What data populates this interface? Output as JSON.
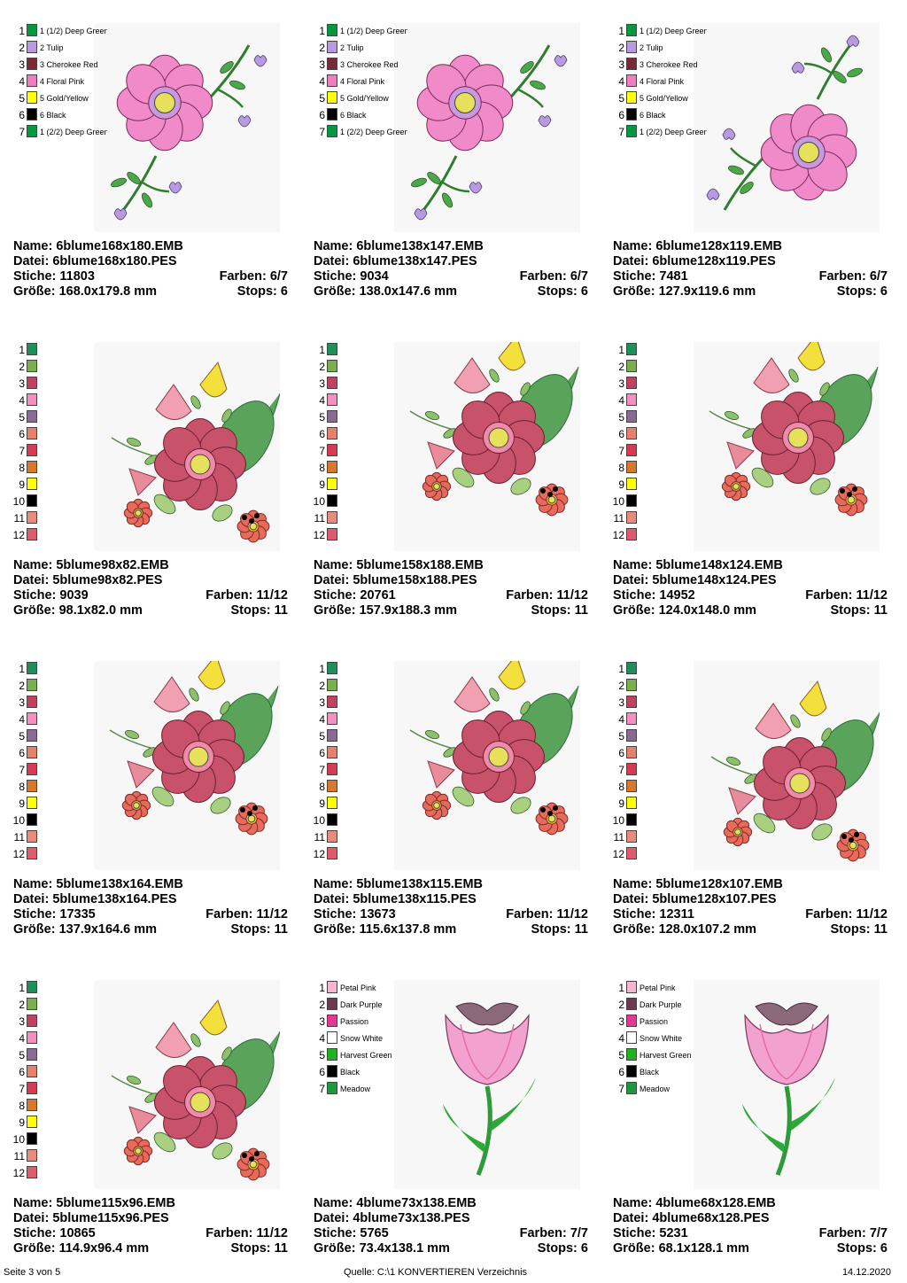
{
  "labels": {
    "name": "Name:",
    "file": "Datei:",
    "stitches": "Stiche:",
    "colors": "Farben:",
    "size": "Größe:",
    "stops": "Stops:"
  },
  "cards": [
    {
      "name": "6blume168x180.EMB",
      "file": "6blume168x180.PES",
      "stitches": "11803",
      "colors": "6/7",
      "size": "168.0x179.8 mm",
      "stops": "6",
      "legend": [
        {
          "n": "1",
          "label": "1 (1/2) Deep Green",
          "color": "#009a3d"
        },
        {
          "n": "2",
          "label": "2 Tulip",
          "color": "#b79ae0"
        },
        {
          "n": "3",
          "label": "3 Cherokee Red",
          "color": "#7a2a35"
        },
        {
          "n": "4",
          "label": "4 Floral Pink",
          "color": "#f07dbe"
        },
        {
          "n": "5",
          "label": "5 Gold/Yellow",
          "color": "#ffff00"
        },
        {
          "n": "6",
          "label": "6 Black",
          "color": "#000000"
        },
        {
          "n": "7",
          "label": "1 (2/2) Deep Green",
          "color": "#009a3d"
        }
      ],
      "motif": "corner-flower"
    },
    {
      "name": "6blume138x147.EMB",
      "file": "6blume138x147.PES",
      "stitches": "9034",
      "colors": "6/7",
      "size": "138.0x147.6 mm",
      "stops": "6",
      "legend": [
        {
          "n": "1",
          "label": "1 (1/2) Deep Green",
          "color": "#009a3d"
        },
        {
          "n": "2",
          "label": "2 Tulip",
          "color": "#b79ae0"
        },
        {
          "n": "3",
          "label": "3 Cherokee Red",
          "color": "#7a2a35"
        },
        {
          "n": "4",
          "label": "4 Floral Pink",
          "color": "#f07dbe"
        },
        {
          "n": "5",
          "label": "5 Gold/Yellow",
          "color": "#ffff00"
        },
        {
          "n": "6",
          "label": "6 Black",
          "color": "#000000"
        },
        {
          "n": "7",
          "label": "1 (2/2) Deep Green",
          "color": "#009a3d"
        }
      ],
      "motif": "corner-flower"
    },
    {
      "name": "6blume128x119.EMB",
      "file": "6blume128x119.PES",
      "stitches": "7481",
      "colors": "6/7",
      "size": "127.9x119.6 mm",
      "stops": "6",
      "legend": [
        {
          "n": "1",
          "label": "1 (1/2) Deep Green",
          "color": "#009a3d"
        },
        {
          "n": "2",
          "label": "2 Tulip",
          "color": "#b79ae0"
        },
        {
          "n": "3",
          "label": "3 Cherokee Red",
          "color": "#7a2a35"
        },
        {
          "n": "4",
          "label": "4 Floral Pink",
          "color": "#f07dbe"
        },
        {
          "n": "5",
          "label": "5 Gold/Yellow",
          "color": "#ffff00"
        },
        {
          "n": "6",
          "label": "6 Black",
          "color": "#000000"
        },
        {
          "n": "7",
          "label": "1 (2/2) Deep Green",
          "color": "#009a3d"
        }
      ],
      "motif": "corner-flower-rotated"
    },
    {
      "name": "5blume98x82.EMB",
      "file": "5blume98x82.PES",
      "stitches": "9039",
      "colors": "11/12",
      "size": "98.1x82.0 mm",
      "stops": "11",
      "legend": [
        {
          "n": "1",
          "label": "",
          "color": "#1f8f5a"
        },
        {
          "n": "2",
          "label": "",
          "color": "#7ab04c"
        },
        {
          "n": "3",
          "label": "",
          "color": "#c2415f"
        },
        {
          "n": "4",
          "label": "",
          "color": "#f48fc0"
        },
        {
          "n": "5",
          "label": "",
          "color": "#8a6a95"
        },
        {
          "n": "6",
          "label": "",
          "color": "#e8806e"
        },
        {
          "n": "7",
          "label": "",
          "color": "#d83a52"
        },
        {
          "n": "8",
          "label": "",
          "color": "#d9782a"
        },
        {
          "n": "9",
          "label": "",
          "color": "#ffff00"
        },
        {
          "n": "10",
          "label": "",
          "color": "#000000"
        },
        {
          "n": "11",
          "label": "",
          "color": "#e88c7c"
        },
        {
          "n": "12",
          "label": "",
          "color": "#e05a6a"
        }
      ],
      "motif": "bouquet-wide"
    },
    {
      "name": "5blume158x188.EMB",
      "file": "5blume158x188.PES",
      "stitches": "20761",
      "colors": "11/12",
      "size": "157.9x188.3 mm",
      "stops": "11",
      "legend": [
        {
          "n": "1",
          "label": "",
          "color": "#1f8f5a"
        },
        {
          "n": "2",
          "label": "",
          "color": "#7ab04c"
        },
        {
          "n": "3",
          "label": "",
          "color": "#c2415f"
        },
        {
          "n": "4",
          "label": "",
          "color": "#f48fc0"
        },
        {
          "n": "5",
          "label": "",
          "color": "#8a6a95"
        },
        {
          "n": "6",
          "label": "",
          "color": "#e8806e"
        },
        {
          "n": "7",
          "label": "",
          "color": "#d83a52"
        },
        {
          "n": "8",
          "label": "",
          "color": "#d9782a"
        },
        {
          "n": "9",
          "label": "",
          "color": "#ffff00"
        },
        {
          "n": "10",
          "label": "",
          "color": "#000000"
        },
        {
          "n": "11",
          "label": "",
          "color": "#e88c7c"
        },
        {
          "n": "12",
          "label": "",
          "color": "#e05a6a"
        }
      ],
      "motif": "bouquet-tall"
    },
    {
      "name": "5blume148x124.EMB",
      "file": "5blume148x124.PES",
      "stitches": "14952",
      "colors": "11/12",
      "size": "124.0x148.0 mm",
      "stops": "11",
      "legend": [
        {
          "n": "1",
          "label": "",
          "color": "#1f8f5a"
        },
        {
          "n": "2",
          "label": "",
          "color": "#7ab04c"
        },
        {
          "n": "3",
          "label": "",
          "color": "#c2415f"
        },
        {
          "n": "4",
          "label": "",
          "color": "#f48fc0"
        },
        {
          "n": "5",
          "label": "",
          "color": "#8a6a95"
        },
        {
          "n": "6",
          "label": "",
          "color": "#e8806e"
        },
        {
          "n": "7",
          "label": "",
          "color": "#d83a52"
        },
        {
          "n": "8",
          "label": "",
          "color": "#d9782a"
        },
        {
          "n": "9",
          "label": "",
          "color": "#ffff00"
        },
        {
          "n": "10",
          "label": "",
          "color": "#000000"
        },
        {
          "n": "11",
          "label": "",
          "color": "#e88c7c"
        },
        {
          "n": "12",
          "label": "",
          "color": "#e05a6a"
        }
      ],
      "motif": "bouquet-tall"
    },
    {
      "name": "5blume138x164.EMB",
      "file": "5blume138x164.PES",
      "stitches": "17335",
      "colors": "11/12",
      "size": "137.9x164.6 mm",
      "stops": "11",
      "legend": [
        {
          "n": "1",
          "label": "",
          "color": "#1f8f5a"
        },
        {
          "n": "2",
          "label": "",
          "color": "#7ab04c"
        },
        {
          "n": "3",
          "label": "",
          "color": "#c2415f"
        },
        {
          "n": "4",
          "label": "",
          "color": "#f48fc0"
        },
        {
          "n": "5",
          "label": "",
          "color": "#8a6a95"
        },
        {
          "n": "6",
          "label": "",
          "color": "#e8806e"
        },
        {
          "n": "7",
          "label": "",
          "color": "#d83a52"
        },
        {
          "n": "8",
          "label": "",
          "color": "#d9782a"
        },
        {
          "n": "9",
          "label": "",
          "color": "#ffff00"
        },
        {
          "n": "10",
          "label": "",
          "color": "#000000"
        },
        {
          "n": "11",
          "label": "",
          "color": "#e88c7c"
        },
        {
          "n": "12",
          "label": "",
          "color": "#e05a6a"
        }
      ],
      "motif": "bouquet-tall"
    },
    {
      "name": "5blume138x115.EMB",
      "file": "5blume138x115.PES",
      "stitches": "13673",
      "colors": "11/12",
      "size": "115.6x137.8 mm",
      "stops": "11",
      "legend": [
        {
          "n": "1",
          "label": "",
          "color": "#1f8f5a"
        },
        {
          "n": "2",
          "label": "",
          "color": "#7ab04c"
        },
        {
          "n": "3",
          "label": "",
          "color": "#c2415f"
        },
        {
          "n": "4",
          "label": "",
          "color": "#f48fc0"
        },
        {
          "n": "5",
          "label": "",
          "color": "#8a6a95"
        },
        {
          "n": "6",
          "label": "",
          "color": "#e8806e"
        },
        {
          "n": "7",
          "label": "",
          "color": "#d83a52"
        },
        {
          "n": "8",
          "label": "",
          "color": "#d9782a"
        },
        {
          "n": "9",
          "label": "",
          "color": "#ffff00"
        },
        {
          "n": "10",
          "label": "",
          "color": "#000000"
        },
        {
          "n": "11",
          "label": "",
          "color": "#e88c7c"
        },
        {
          "n": "12",
          "label": "",
          "color": "#e05a6a"
        }
      ],
      "motif": "bouquet-tall"
    },
    {
      "name": "5blume128x107.EMB",
      "file": "5blume128x107.PES",
      "stitches": "12311",
      "colors": "11/12",
      "size": "128.0x107.2 mm",
      "stops": "11",
      "legend": [
        {
          "n": "1",
          "label": "",
          "color": "#1f8f5a"
        },
        {
          "n": "2",
          "label": "",
          "color": "#7ab04c"
        },
        {
          "n": "3",
          "label": "",
          "color": "#c2415f"
        },
        {
          "n": "4",
          "label": "",
          "color": "#f48fc0"
        },
        {
          "n": "5",
          "label": "",
          "color": "#8a6a95"
        },
        {
          "n": "6",
          "label": "",
          "color": "#e8806e"
        },
        {
          "n": "7",
          "label": "",
          "color": "#d83a52"
        },
        {
          "n": "8",
          "label": "",
          "color": "#d9782a"
        },
        {
          "n": "9",
          "label": "",
          "color": "#ffff00"
        },
        {
          "n": "10",
          "label": "",
          "color": "#000000"
        },
        {
          "n": "11",
          "label": "",
          "color": "#e88c7c"
        },
        {
          "n": "12",
          "label": "",
          "color": "#e05a6a"
        }
      ],
      "motif": "bouquet-wide"
    },
    {
      "name": "5blume115x96.EMB",
      "file": "5blume115x96.PES",
      "stitches": "10865",
      "colors": "11/12",
      "size": "114.9x96.4 mm",
      "stops": "11",
      "legend": [
        {
          "n": "1",
          "label": "",
          "color": "#1f8f5a"
        },
        {
          "n": "2",
          "label": "",
          "color": "#7ab04c"
        },
        {
          "n": "3",
          "label": "",
          "color": "#c2415f"
        },
        {
          "n": "4",
          "label": "",
          "color": "#f48fc0"
        },
        {
          "n": "5",
          "label": "",
          "color": "#8a6a95"
        },
        {
          "n": "6",
          "label": "",
          "color": "#e8806e"
        },
        {
          "n": "7",
          "label": "",
          "color": "#d83a52"
        },
        {
          "n": "8",
          "label": "",
          "color": "#d9782a"
        },
        {
          "n": "9",
          "label": "",
          "color": "#ffff00"
        },
        {
          "n": "10",
          "label": "",
          "color": "#000000"
        },
        {
          "n": "11",
          "label": "",
          "color": "#e88c7c"
        },
        {
          "n": "12",
          "label": "",
          "color": "#e05a6a"
        }
      ],
      "motif": "bouquet-wide"
    },
    {
      "name": "4blume73x138.EMB",
      "file": "4blume73x138.PES",
      "stitches": "5765",
      "colors": "7/7",
      "size": "73.4x138.1 mm",
      "stops": "6",
      "legend": [
        {
          "n": "1",
          "label": "Petal Pink",
          "color": "#f7b6cf"
        },
        {
          "n": "2",
          "label": "Dark Purple",
          "color": "#6b3a4e"
        },
        {
          "n": "3",
          "label": "Passion",
          "color": "#e8359a"
        },
        {
          "n": "4",
          "label": "Snow White",
          "color": "#ffffff"
        },
        {
          "n": "5",
          "label": "Harvest Green",
          "color": "#20b020"
        },
        {
          "n": "6",
          "label": "Black",
          "color": "#000000"
        },
        {
          "n": "7",
          "label": "Meadow",
          "color": "#1a9a3a"
        }
      ],
      "motif": "tulip"
    },
    {
      "name": "4blume68x128.EMB",
      "file": "4blume68x128.PES",
      "stitches": "5231",
      "colors": "7/7",
      "size": "68.1x128.1 mm",
      "stops": "6",
      "legend": [
        {
          "n": "1",
          "label": "Petal Pink",
          "color": "#f7b6cf"
        },
        {
          "n": "2",
          "label": "Dark Purple",
          "color": "#6b3a4e"
        },
        {
          "n": "3",
          "label": "Passion",
          "color": "#e8359a"
        },
        {
          "n": "4",
          "label": "Snow White",
          "color": "#ffffff"
        },
        {
          "n": "5",
          "label": "Harvest Green",
          "color": "#20b020"
        },
        {
          "n": "6",
          "label": "Black",
          "color": "#000000"
        },
        {
          "n": "7",
          "label": "Meadow",
          "color": "#1a9a3a"
        }
      ],
      "motif": "tulip"
    }
  ],
  "footer": {
    "page": "Seite 3 von 5",
    "source": "Quelle: C:\\1 KONVERTIEREN Verzeichnis",
    "date": "14.12.2020"
  }
}
